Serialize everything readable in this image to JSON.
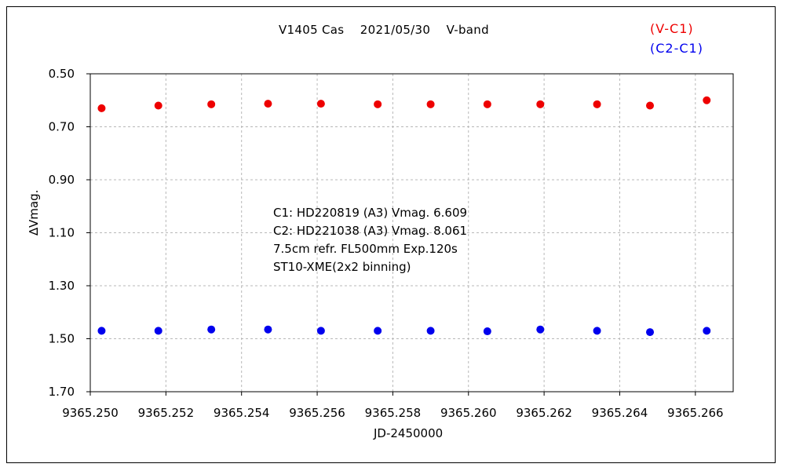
{
  "chart_data": {
    "type": "scatter",
    "title": "V1405 Cas　 2021/05/30　 V-band",
    "xlabel": "JD-2450000",
    "ylabel": "∆Vmag.",
    "xlim": [
      9365.25,
      9365.267
    ],
    "ylim": [
      0.5,
      1.7
    ],
    "y_inverted": true,
    "x_ticks": [
      "9365.250",
      "9365.252",
      "9365.254",
      "9365.256",
      "9365.258",
      "9365.260",
      "9365.262",
      "9365.264",
      "9365.266"
    ],
    "x_tick_values": [
      9365.25,
      9365.252,
      9365.254,
      9365.256,
      9365.258,
      9365.26,
      9365.262,
      9365.264,
      9365.266
    ],
    "y_ticks": [
      "0.50",
      "0.70",
      "0.90",
      "1.10",
      "1.30",
      "1.50",
      "1.70"
    ],
    "y_tick_values": [
      0.5,
      0.7,
      0.9,
      1.1,
      1.3,
      1.5,
      1.7
    ],
    "grid": true,
    "legend_position": "top-right",
    "series": [
      {
        "name": "(V-C1)",
        "color": "#ee0000",
        "x": [
          9365.2503,
          9365.2518,
          9365.2532,
          9365.2547,
          9365.2561,
          9365.2576,
          9365.259,
          9365.2605,
          9365.2619,
          9365.2634,
          9365.2648,
          9365.2663
        ],
        "y": [
          0.63,
          0.62,
          0.615,
          0.613,
          0.613,
          0.615,
          0.615,
          0.615,
          0.615,
          0.615,
          0.62,
          0.6
        ]
      },
      {
        "name": "(C2-C1)",
        "color": "#0000ee",
        "x": [
          9365.2503,
          9365.2518,
          9365.2532,
          9365.2547,
          9365.2561,
          9365.2576,
          9365.259,
          9365.2605,
          9365.2619,
          9365.2634,
          9365.2648,
          9365.2663
        ],
        "y": [
          1.47,
          1.47,
          1.465,
          1.465,
          1.47,
          1.47,
          1.47,
          1.472,
          1.465,
          1.47,
          1.475,
          1.47
        ]
      }
    ],
    "annotations": [
      "C1: HD220819 (A3) Vmag. 6.609",
      "C2: HD221038 (A3) Vmag. 8.061",
      "7.5cm refr. FL500mm  Exp.120s",
      "ST10-XME(2x2 binning)"
    ]
  }
}
